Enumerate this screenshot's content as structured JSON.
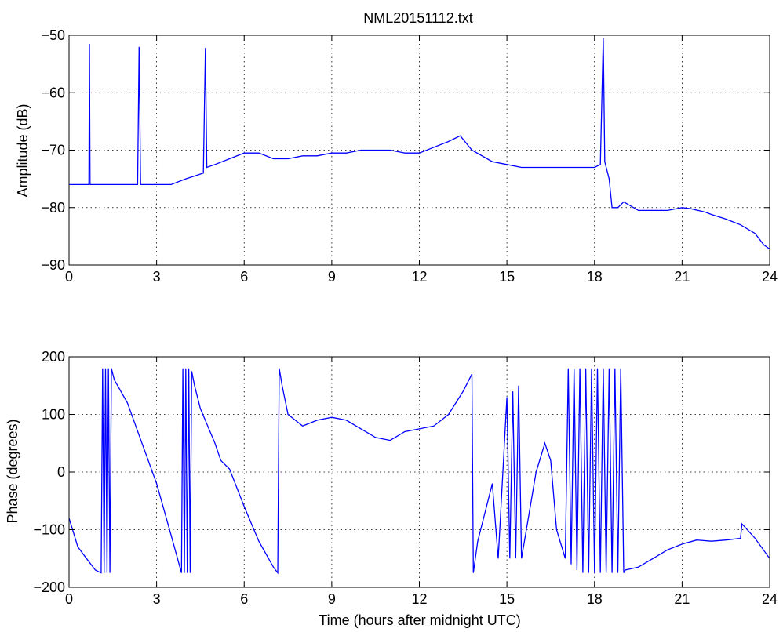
{
  "chart_data": [
    {
      "type": "line",
      "title": "NML20151112.txt",
      "xlabel": "",
      "ylabel": "Amplitude (dB)",
      "xlim": [
        0,
        24
      ],
      "ylim": [
        -90,
        -50
      ],
      "xticks": [
        0,
        3,
        6,
        9,
        12,
        15,
        18,
        21,
        24
      ],
      "yticks": [
        -90,
        -80,
        -70,
        -60,
        -50
      ],
      "grid": true,
      "color": "#0000ff",
      "series": [
        {
          "x": [
            0,
            0.5,
            0.68,
            0.7,
            0.72,
            1.0,
            1.5,
            2.0,
            2.35,
            2.4,
            2.45,
            3.0,
            3.5,
            4.0,
            4.6,
            4.67,
            4.72,
            5.0,
            5.5,
            6.0,
            6.5,
            7.0,
            7.5,
            8.0,
            8.5,
            9.0,
            9.5,
            10.0,
            10.5,
            11.0,
            11.5,
            12.0,
            12.5,
            13.0,
            13.4,
            13.8,
            14.5,
            15.0,
            15.5,
            16.0,
            16.5,
            17.0,
            17.5,
            18.0,
            18.2,
            18.3,
            18.35,
            18.5,
            18.6,
            18.8,
            19.0,
            19.5,
            20.0,
            20.5,
            21.0,
            21.3,
            21.8,
            22.0,
            22.5,
            23.0,
            23.5,
            23.8,
            24.0
          ],
          "y": [
            -76,
            -76,
            -76,
            -51.5,
            -76,
            -76,
            -76,
            -76,
            -76,
            -52,
            -76,
            -76,
            -76,
            -75,
            -74,
            -52.2,
            -73,
            -72.5,
            -71.5,
            -70.5,
            -70.5,
            -71.5,
            -71.5,
            -71,
            -71,
            -70.5,
            -70.5,
            -70,
            -70,
            -70,
            -70.5,
            -70.5,
            -69.5,
            -68.5,
            -67.5,
            -70,
            -72,
            -72.5,
            -73,
            -73,
            -73,
            -73,
            -73,
            -73,
            -72.5,
            -50.5,
            -72,
            -75,
            -80,
            -80,
            -79,
            -80.5,
            -80.5,
            -80.5,
            -80,
            -80.2,
            -80.8,
            -81.2,
            -82,
            -83,
            -84.5,
            -86.5,
            -87.2
          ]
        }
      ]
    },
    {
      "type": "line",
      "title": "",
      "xlabel": "Time (hours after midnight UTC)",
      "ylabel": "Phase (degrees)",
      "xlim": [
        0,
        24
      ],
      "ylim": [
        -200,
        200
      ],
      "xticks": [
        0,
        3,
        6,
        9,
        12,
        15,
        18,
        21,
        24
      ],
      "yticks": [
        -200,
        -100,
        0,
        100,
        200
      ],
      "grid": true,
      "color": "#0000ff",
      "series": [
        {
          "x": [
            0,
            0.3,
            0.6,
            0.9,
            1.1,
            1.15,
            1.2,
            1.25,
            1.3,
            1.35,
            1.4,
            1.45,
            1.5,
            1.55,
            2.0,
            2.5,
            3.0,
            3.5,
            3.85,
            3.9,
            3.95,
            4.0,
            4.05,
            4.1,
            4.15,
            4.2,
            4.3,
            4.5,
            5.0,
            5.2,
            5.5,
            6.0,
            6.5,
            7.0,
            7.15,
            7.2,
            7.3,
            7.5,
            8.0,
            8.5,
            9.0,
            9.5,
            10.0,
            10.5,
            11.0,
            11.5,
            12.0,
            12.5,
            13.0,
            13.5,
            13.8,
            13.85,
            14.0,
            14.3,
            14.5,
            14.7,
            15.0,
            15.1,
            15.2,
            15.3,
            15.4,
            15.5,
            16.0,
            16.3,
            16.5,
            16.7,
            17.0,
            17.1,
            17.2,
            17.3,
            17.4,
            17.5,
            17.6,
            17.7,
            17.8,
            17.9,
            18.0,
            18.1,
            18.2,
            18.3,
            18.4,
            18.5,
            18.6,
            18.7,
            18.8,
            18.9,
            19.0,
            19.05,
            19.5,
            20.0,
            20.5,
            21.0,
            21.5,
            22.0,
            22.5,
            23.0,
            23.05,
            23.5,
            24.0
          ],
          "y": [
            -80,
            -130,
            -150,
            -170,
            -175,
            180,
            -175,
            180,
            -175,
            180,
            -175,
            180,
            170,
            160,
            120,
            50,
            -20,
            -110,
            -175,
            180,
            -175,
            180,
            -175,
            180,
            -175,
            175,
            150,
            110,
            50,
            20,
            5,
            -60,
            -120,
            -165,
            -175,
            180,
            150,
            100,
            80,
            90,
            95,
            90,
            75,
            60,
            55,
            70,
            75,
            80,
            100,
            140,
            170,
            -175,
            -120,
            -60,
            -20,
            -150,
            130,
            -150,
            140,
            -150,
            150,
            -150,
            0,
            50,
            20,
            -100,
            -150,
            180,
            -160,
            180,
            -170,
            180,
            -175,
            180,
            -175,
            180,
            -175,
            180,
            -175,
            180,
            -175,
            180,
            -175,
            180,
            -175,
            180,
            -175,
            -170,
            -165,
            -150,
            -135,
            -125,
            -118,
            -120,
            -118,
            -115,
            -90,
            -115,
            -150
          ]
        }
      ]
    }
  ]
}
